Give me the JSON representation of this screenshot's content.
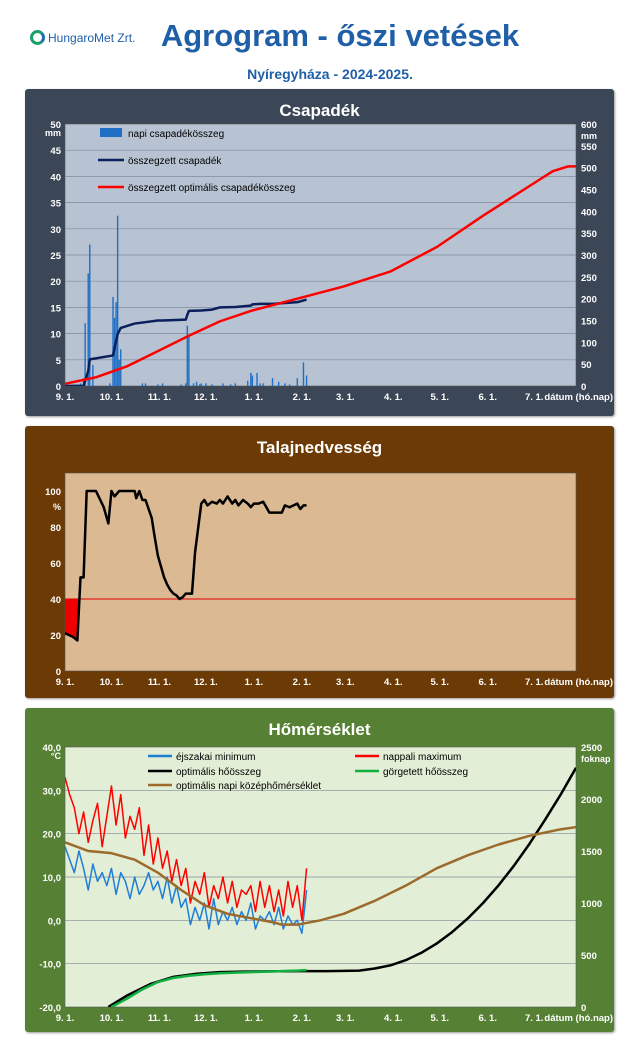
{
  "header": {
    "logo_text": "HungaroMet Zrt.",
    "title": "Agrogram - őszi vetések",
    "subtitle": "Nyíregyháza  - 2024-2025."
  },
  "x_ticks": [
    "9. 1.",
    "10. 1.",
    "11. 1.",
    "12. 1.",
    "1. 1.",
    "2. 1.",
    "3. 1.",
    "4. 1.",
    "5. 1.",
    "6. 1.",
    "7. 1."
  ],
  "x_axis_label": "dátum (hó.nap)",
  "chart_data": [
    {
      "type": "bar",
      "title": "Csapadék",
      "panel_color": "#3b4656",
      "plot_bg": "#b7c3d2",
      "ylabel_left": "mm",
      "ylabel_right": "mm",
      "ylim_left": [
        0,
        50
      ],
      "ylim_right": [
        0,
        600
      ],
      "yticks_left": [
        "0",
        "5",
        "10",
        "15",
        "20",
        "25",
        "30",
        "35",
        "40",
        "45",
        "50"
      ],
      "yticks_right": [
        "0",
        "50",
        "100",
        "150",
        "200",
        "250",
        "300",
        "350",
        "400",
        "450",
        "500",
        "550",
        "600"
      ],
      "x_domain_days": [
        0,
        330
      ],
      "grid": true,
      "legend_position": "top-left",
      "series": [
        {
          "name": "napi csapadékösszeg",
          "axis": "left",
          "color": "#1f6fc5",
          "x": [
            10,
            12,
            13,
            15,
            16,
            18,
            29,
            31,
            32,
            33,
            34,
            35,
            36,
            50,
            52,
            60,
            63,
            75,
            78,
            79,
            80,
            83,
            85,
            87,
            88,
            91,
            95,
            102,
            107,
            110,
            118,
            120,
            121,
            124,
            126,
            128,
            134,
            138,
            142,
            145,
            150,
            154,
            156
          ],
          "values": [
            0.5,
            1.5,
            12,
            21.5,
            27,
            4,
            0.5,
            17,
            13,
            16,
            32.5,
            5,
            7,
            0.5,
            0.5,
            0.3,
            0.5,
            0.3,
            0.5,
            11.5,
            9.5,
            0.5,
            0.8,
            0.3,
            0.5,
            0.5,
            0.3,
            0.5,
            0.3,
            0.5,
            1,
            2.5,
            2,
            2.5,
            0.5,
            0.5,
            1.5,
            0.8,
            0.5,
            0.3,
            1.5,
            4.5,
            2
          ]
        },
        {
          "name": "összegzett csapadék",
          "axis": "right",
          "color": "#0a1f5c",
          "x": [
            0,
            12,
            13,
            15,
            16,
            31,
            32,
            34,
            35,
            36,
            45,
            60,
            63,
            78,
            79,
            80,
            88,
            95,
            100,
            110,
            120,
            121,
            126,
            134,
            150,
            154,
            156
          ],
          "values": [
            0,
            0.5,
            12,
            34,
            61,
            70,
            87,
            119,
            126,
            133,
            143,
            150,
            150,
            152,
            163,
            172,
            173,
            175,
            180,
            181,
            184,
            187,
            188,
            188,
            192,
            196,
            198
          ]
        },
        {
          "name": "összegzett optimális csapadékösszeg",
          "axis": "right",
          "color": "#ff0000",
          "x": [
            0,
            20,
            40,
            60,
            80,
            100,
            120,
            150,
            180,
            210,
            240,
            270,
            300,
            315,
            325,
            330
          ],
          "values": [
            5,
            20,
            45,
            80,
            115,
            148,
            172,
            200,
            228,
            262,
            318,
            390,
            458,
            492,
            503,
            503
          ]
        }
      ]
    },
    {
      "type": "line",
      "title": "Talajnedvesség",
      "panel_color": "#6b3a05",
      "plot_bg": "#dbb992",
      "ylabel_left": "%",
      "ylim_left": [
        0,
        110
      ],
      "yticks_left": [
        "0",
        "20",
        "40",
        "60",
        "80",
        "100"
      ],
      "x_domain_days": [
        0,
        330
      ],
      "threshold": 40,
      "series": [
        {
          "name": "talajnedvesség",
          "axis": "left",
          "color": "#000000",
          "x": [
            0,
            5,
            8,
            10,
            12,
            14,
            15,
            20,
            25,
            28,
            30,
            32,
            35,
            38,
            42,
            45,
            46,
            48,
            50,
            52,
            54,
            56,
            58,
            60,
            62,
            64,
            66,
            68,
            70,
            72,
            74,
            76,
            78,
            80,
            82,
            84,
            88,
            90,
            92,
            95,
            98,
            100,
            102,
            105,
            108,
            110,
            112,
            115,
            118,
            120,
            122,
            125,
            128,
            132,
            136,
            140,
            142,
            145,
            150,
            152,
            154,
            156
          ],
          "values": [
            21,
            19,
            17,
            52,
            52,
            100,
            100,
            100,
            91,
            82,
            100,
            97,
            100,
            100,
            100,
            100,
            96,
            100,
            95,
            95,
            90,
            85,
            74,
            64,
            58,
            52,
            48,
            45,
            43,
            42,
            40,
            41,
            43,
            43,
            43,
            66,
            93,
            95,
            92,
            94,
            93,
            95,
            93,
            97,
            93,
            95,
            92,
            95,
            93,
            91,
            93,
            93,
            94,
            88,
            88,
            88,
            92,
            91,
            93,
            90,
            92,
            92
          ]
        }
      ]
    },
    {
      "type": "line",
      "title": "Hőmérséklet",
      "panel_color": "#568134",
      "plot_bg": "#e2eed6",
      "ylabel_left": "°C",
      "ylabel_right": "foknap",
      "ylim_left": [
        -20,
        40
      ],
      "ylim_right": [
        0,
        2500
      ],
      "yticks_left": [
        "-20,0",
        "-10,0",
        "0,0",
        "10,0",
        "20,0",
        "30,0",
        "40,0"
      ],
      "yticks_right": [
        "0",
        "500",
        "1000",
        "1500",
        "2000",
        "2500"
      ],
      "x_domain_days": [
        0,
        330
      ],
      "legend_position": "top",
      "series": [
        {
          "name": "éjszakai minimum",
          "axis": "left",
          "color": "#1f7fd8",
          "x": [
            0,
            3,
            6,
            9,
            12,
            15,
            18,
            21,
            24,
            27,
            30,
            33,
            36,
            39,
            42,
            45,
            48,
            51,
            54,
            57,
            60,
            63,
            66,
            69,
            72,
            75,
            78,
            81,
            84,
            87,
            90,
            93,
            96,
            99,
            102,
            105,
            108,
            111,
            114,
            117,
            120,
            123,
            126,
            129,
            132,
            135,
            138,
            141,
            144,
            147,
            150,
            153,
            156
          ],
          "values": [
            17,
            14,
            11,
            16,
            12,
            7,
            13,
            9,
            11,
            8,
            12,
            6,
            11,
            9,
            5,
            10,
            6,
            8,
            11,
            7,
            9,
            5,
            10,
            4,
            8,
            3,
            5,
            -1,
            3,
            0,
            4,
            -2,
            5,
            -1,
            2,
            0,
            3,
            -1,
            2,
            0,
            4,
            -2,
            1,
            0,
            2,
            -1,
            3,
            -2,
            1,
            -1,
            0,
            -3,
            7
          ]
        },
        {
          "name": "nappali maximum",
          "axis": "left",
          "color": "#ff0000",
          "x": [
            0,
            3,
            6,
            9,
            12,
            15,
            18,
            21,
            24,
            27,
            30,
            33,
            36,
            39,
            42,
            45,
            48,
            51,
            54,
            57,
            60,
            63,
            66,
            69,
            72,
            75,
            78,
            81,
            84,
            87,
            90,
            93,
            96,
            99,
            102,
            105,
            108,
            111,
            114,
            117,
            120,
            123,
            126,
            129,
            132,
            135,
            138,
            141,
            144,
            147,
            150,
            153,
            156
          ],
          "values": [
            33,
            29,
            26,
            20,
            25,
            18,
            23,
            27,
            17,
            24,
            31,
            22,
            29,
            19,
            24,
            21,
            26,
            15,
            22,
            13,
            19,
            12,
            16,
            9,
            14,
            8,
            12,
            4,
            9,
            6,
            11,
            3,
            8,
            5,
            10,
            4,
            9,
            3,
            7,
            6,
            8,
            2,
            9,
            3,
            8,
            2,
            7,
            1,
            9,
            3,
            8,
            0,
            12
          ]
        },
        {
          "name": "optimális hőösszeg",
          "axis": "right",
          "color": "#000000",
          "x": [
            28,
            40,
            55,
            70,
            85,
            100,
            115,
            130,
            150,
            170,
            190,
            200,
            210,
            220,
            230,
            240,
            250,
            260,
            270,
            280,
            290,
            300,
            310,
            320,
            330
          ],
          "values": [
            0,
            110,
            220,
            290,
            320,
            335,
            340,
            342,
            345,
            345,
            350,
            370,
            400,
            450,
            520,
            610,
            720,
            850,
            1000,
            1170,
            1360,
            1570,
            1800,
            2040,
            2300
          ]
        },
        {
          "name": "görgetett hőösszeg",
          "axis": "right",
          "color": "#10b040",
          "x": [
            30,
            40,
            50,
            60,
            70,
            80,
            90,
            100,
            110,
            120,
            130,
            140,
            150,
            156
          ],
          "values": [
            0,
            80,
            170,
            240,
            280,
            300,
            315,
            325,
            330,
            335,
            340,
            345,
            350,
            355
          ]
        },
        {
          "name": "optimális napi középhőmérséklet",
          "axis": "left",
          "color": "#9c6b2c",
          "x": [
            0,
            15,
            30,
            45,
            60,
            75,
            90,
            105,
            120,
            135,
            140,
            150,
            165,
            180,
            200,
            220,
            240,
            260,
            280,
            300,
            320,
            330
          ],
          "values": [
            18,
            16,
            15.5,
            14,
            11,
            7,
            3.5,
            1.5,
            0.5,
            -0.5,
            -1,
            -1,
            0,
            1.5,
            4.5,
            8,
            12,
            15,
            17.5,
            19.5,
            21,
            21.5
          ]
        }
      ]
    }
  ]
}
